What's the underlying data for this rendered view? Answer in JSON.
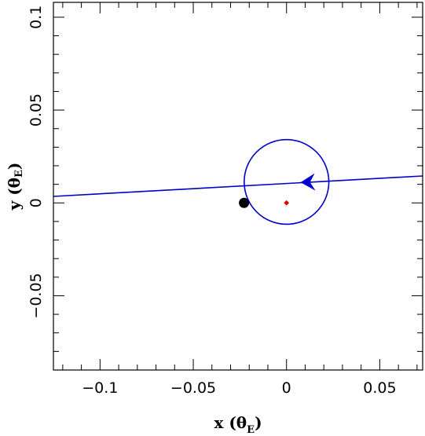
{
  "chart_data": {
    "type": "scatter",
    "title": "",
    "xlabel": {
      "main": "x (θ",
      "sub": "E",
      "close": ")"
    },
    "ylabel": {
      "main": "y (θ",
      "sub": "E",
      "close": ")"
    },
    "xlim": [
      -0.125,
      0.073
    ],
    "ylim": [
      -0.09,
      0.108
    ],
    "x_ticks": [
      {
        "value": -0.1,
        "label": "−0.1"
      },
      {
        "value": -0.05,
        "label": "−0.05"
      },
      {
        "value": 0,
        "label": "0"
      },
      {
        "value": 0.05,
        "label": "0.05"
      }
    ],
    "y_ticks": [
      {
        "value": -0.05,
        "label": "−0.05"
      },
      {
        "value": 0,
        "label": "0"
      },
      {
        "value": 0.05,
        "label": "0.05"
      },
      {
        "value": 0.1,
        "label": "0.1"
      }
    ],
    "minor_tick_step": 0.01,
    "grid": false,
    "trajectory": {
      "color": "#0000cc",
      "points": [
        [
          -0.125,
          0.0035
        ],
        [
          0.073,
          0.0145
        ]
      ],
      "direction_arrow": {
        "at": [
          0.013,
          0.0113
        ],
        "heading": "left"
      }
    },
    "source_circle": {
      "center": [
        0.0,
        0.0113
      ],
      "radius": 0.0227,
      "color": "#0000cc"
    },
    "lens": {
      "x": -0.0228,
      "y": 0.0,
      "color": "#000000"
    },
    "caustic": {
      "x": 0.0,
      "y": 0.0,
      "color": "#dd0000"
    }
  }
}
